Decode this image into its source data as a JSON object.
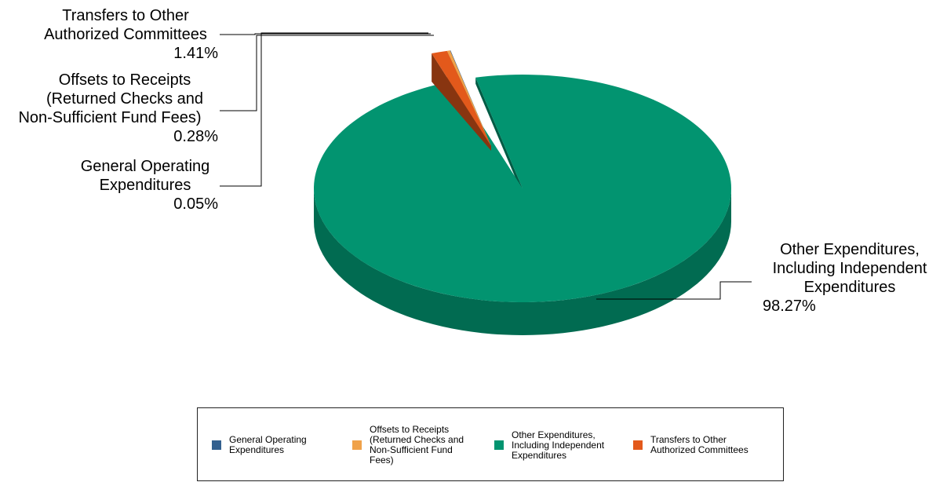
{
  "chart_data": {
    "type": "pie",
    "title": "",
    "slices": [
      {
        "name": "General Operating Expenditures",
        "value": 0.05,
        "label": "0.05%",
        "color": "#33608f"
      },
      {
        "name": "Offsets to Receipts (Returned Checks and Non-Sufficient Fund Fees)",
        "value": 0.28,
        "label": "0.28%",
        "color": "#f0a24a"
      },
      {
        "name": "Other Expenditures, Including Independent Expenditures",
        "value": 98.27,
        "label": "98.27%",
        "color": "#029470"
      },
      {
        "name": "Transfers to Other Authorized Committees",
        "value": 1.41,
        "label": "1.41%",
        "color": "#e3591b"
      }
    ],
    "callouts": [
      {
        "lines": [
          "Transfers to Other",
          "Authorized Committees"
        ],
        "pct": "1.41%"
      },
      {
        "lines": [
          "Offsets to Receipts",
          "(Returned Checks and",
          "Non-Sufficient Fund Fees)"
        ],
        "pct": "0.28%"
      },
      {
        "lines": [
          "General Operating",
          "Expenditures"
        ],
        "pct": "0.05%"
      },
      {
        "lines": [
          "Other Expenditures,",
          "Including Independent",
          "Expenditures"
        ],
        "pct": "98.27%"
      }
    ],
    "legend": {
      "position": "bottom",
      "items": [
        {
          "text": "General Operating\nExpenditures",
          "color": "#33608f"
        },
        {
          "text": "Offsets to Receipts\n(Returned Checks and\nNon-Sufficient Fund\nFees)",
          "color": "#f0a24a"
        },
        {
          "text": "Other Expenditures,\nIncluding Independent\nExpenditures",
          "color": "#029470"
        },
        {
          "text": "Transfers to Other\nAuthorized Committees",
          "color": "#e3591b"
        }
      ]
    }
  }
}
